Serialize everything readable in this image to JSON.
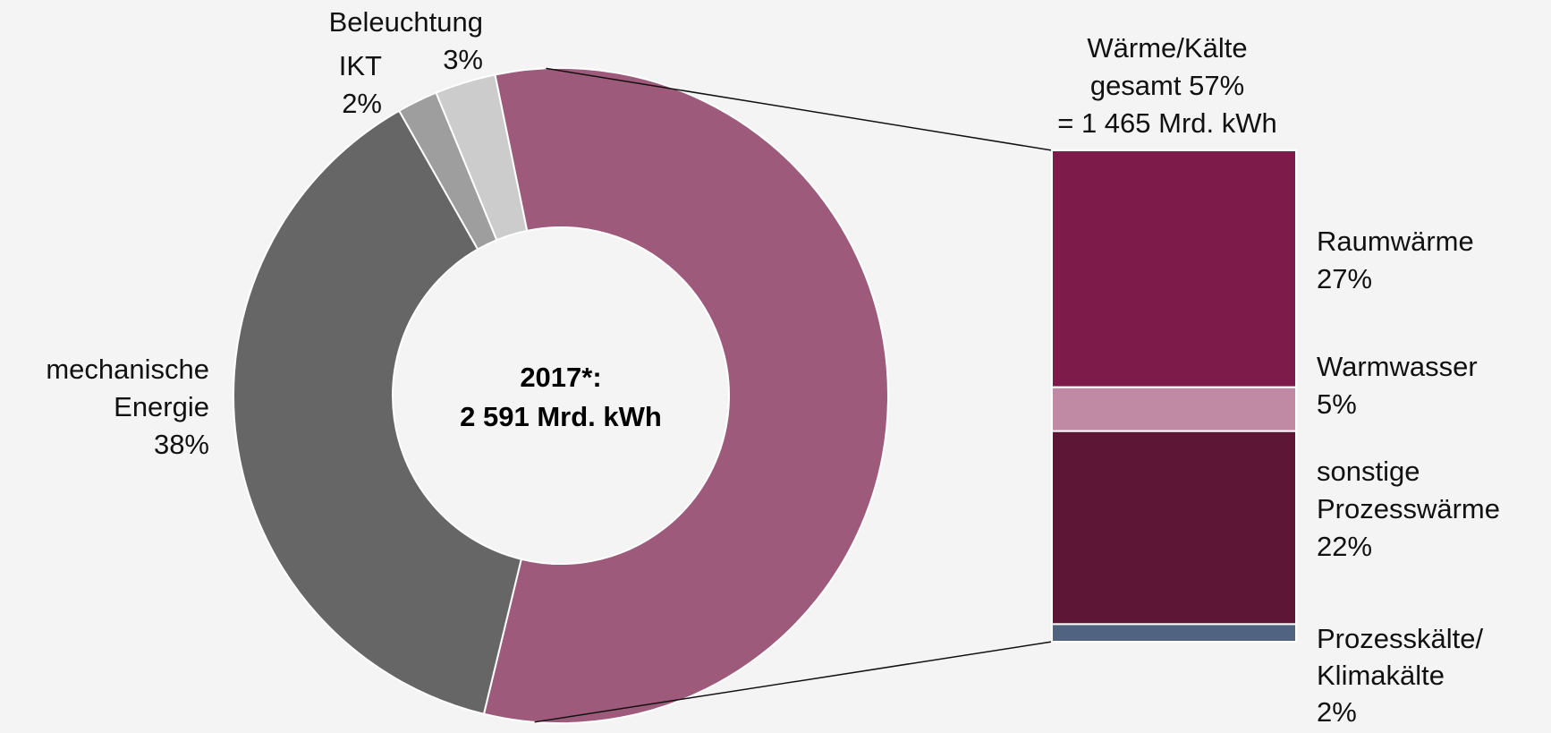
{
  "chart_data": {
    "type": "donut",
    "center_label": "2017*:\n2 591 Mrd. kWh",
    "categories": [
      "Wärme/Kälte",
      "mechanische\nEnergie",
      "IKT",
      "Beleuchtung"
    ],
    "values": [
      57,
      38,
      2,
      3
    ],
    "value_labels": [
      "gesamt 57%",
      "38%",
      "2%",
      "3%"
    ],
    "colors": [
      "#9e5a7a",
      "#666666",
      "#9e9e9e",
      "#cccccc"
    ],
    "annotation": "= 1 465 Mrd. kWh",
    "breakdown": {
      "type": "stacked-bar",
      "categories": [
        "Raumwärme",
        "Warmwasser",
        "sonstige\nProzesswärme",
        "Prozesskälte/\nKlimakälte"
      ],
      "values": [
        27,
        5,
        22,
        2
      ],
      "value_labels": [
        "27%",
        "5%",
        "22%",
        "2%"
      ],
      "colors": [
        "#7d1b4a",
        "#c08aa5",
        "#5e1637",
        "#506482"
      ]
    }
  }
}
